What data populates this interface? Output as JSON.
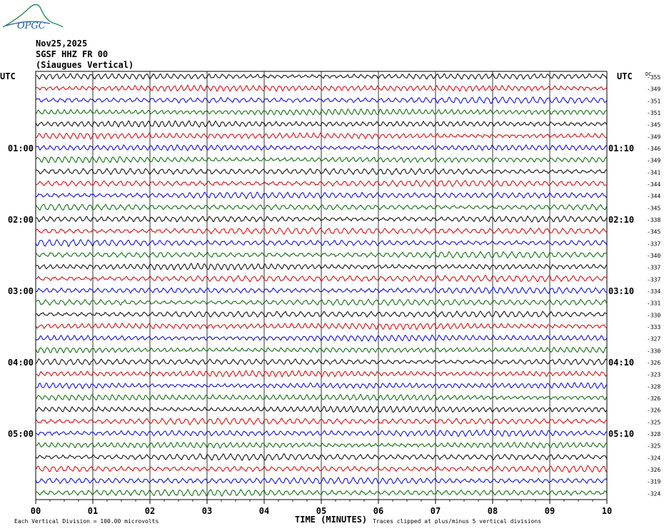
{
  "header": {
    "logo_text": "OPGC",
    "date": "Nov25,2025",
    "station": "SGSF HHZ FR 00",
    "location": "(Siaugues Vertical)"
  },
  "chart_data": {
    "type": "line",
    "title": "",
    "xlabel": "TIME (MINUTES)",
    "x_ticks": [
      "00",
      "01",
      "02",
      "03",
      "04",
      "05",
      "06",
      "07",
      "08",
      "09",
      "10"
    ],
    "xlim": [
      0,
      10
    ],
    "left_axis_label": "UTC",
    "right_axis_label": "UTC",
    "dc_label": "DC",
    "left_hour_labels": [
      "01:00",
      "02:00",
      "03:00",
      "04:00",
      "05:00"
    ],
    "right_hour_labels": [
      "01:10",
      "02:10",
      "03:10",
      "04:10",
      "05:10"
    ],
    "trace_colors": [
      "#000000",
      "#cc0000",
      "#0000cc",
      "#006600"
    ],
    "dc_offsets": [
      -355,
      -349,
      -351,
      -351,
      -345,
      -349,
      -346,
      -349,
      -341,
      -344,
      -344,
      -345,
      -338,
      -345,
      -337,
      -340,
      -337,
      -337,
      -334,
      -331,
      -330,
      -333,
      -327,
      -330,
      -326,
      -323,
      -328,
      -326,
      -326,
      -325,
      -328,
      -325,
      -324,
      -326,
      -319,
      -324
    ],
    "footer_left": "Each Vertical Division =  100.00 microvolts",
    "footer_right": "Traces clipped at plus/minus 5 vertical divisions"
  }
}
